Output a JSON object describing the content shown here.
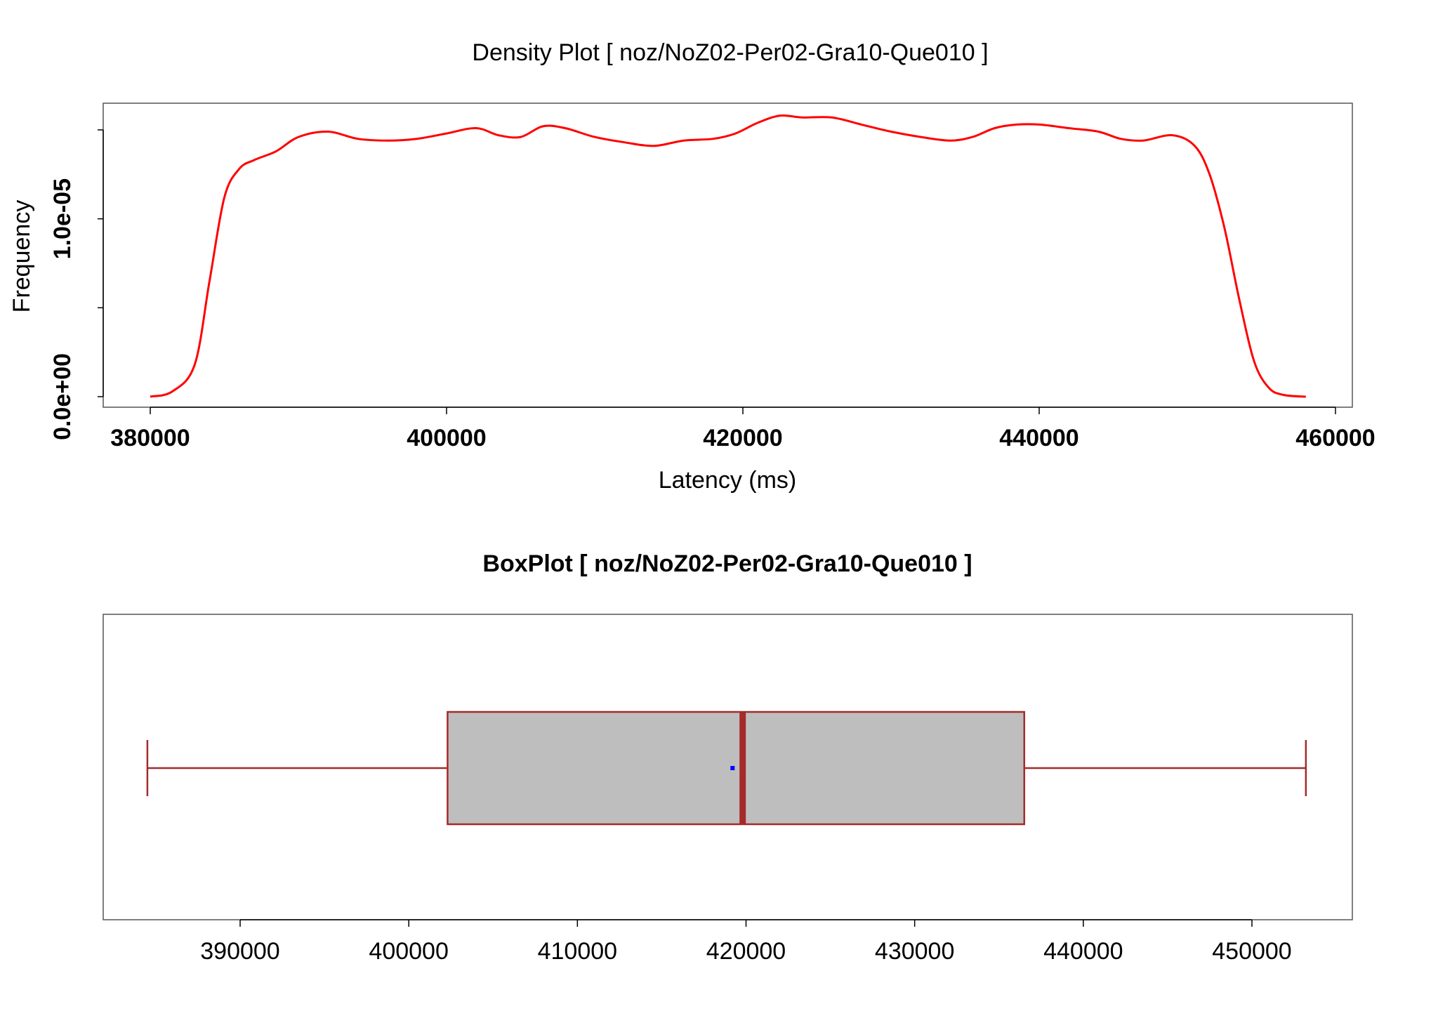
{
  "chart_data": [
    {
      "type": "line",
      "title": "Density Plot [ noz/NoZ02-Per02-Gra10-Que010 ]",
      "xlabel": "Latency (ms)",
      "ylabel": "Frequency",
      "xlim": [
        380000,
        460000
      ],
      "ylim": [
        0,
        1.5e-05
      ],
      "x_ticks": [
        380000,
        400000,
        420000,
        440000,
        460000
      ],
      "x_tick_labels": [
        "380000",
        "400000",
        "420000",
        "440000",
        "460000"
      ],
      "y_ticks": [
        0,
        5e-06,
        1e-05,
        1.5e-05
      ],
      "y_tick_labels": [
        "0.0e+00",
        "",
        "1.0e-05",
        ""
      ],
      "grid": false,
      "series": [
        {
          "color": "#ff0000",
          "x": [
            380000,
            381500,
            383000,
            384000,
            385000,
            386000,
            387000,
            388500,
            390000,
            392000,
            394000,
            396000,
            398000,
            400000,
            402000,
            403500,
            405000,
            406500,
            408000,
            410000,
            412000,
            414000,
            416000,
            418000,
            419500,
            421000,
            422500,
            424000,
            426000,
            428000,
            430000,
            432000,
            434000,
            435500,
            437000,
            438500,
            440000,
            442000,
            444000,
            445500,
            447000,
            449000,
            450500,
            451500,
            452500,
            453500,
            454500,
            455500,
            456500,
            458000
          ],
          "y": [
            0.0,
            3e-07,
            1.8e-06,
            6.5e-06,
            1.12e-05,
            1.28e-05,
            1.33e-05,
            1.38e-05,
            1.46e-05,
            1.49e-05,
            1.45e-05,
            1.44e-05,
            1.45e-05,
            1.48e-05,
            1.51e-05,
            1.47e-05,
            1.46e-05,
            1.52e-05,
            1.51e-05,
            1.46e-05,
            1.43e-05,
            1.41e-05,
            1.44e-05,
            1.45e-05,
            1.48e-05,
            1.54e-05,
            1.58e-05,
            1.57e-05,
            1.57e-05,
            1.53e-05,
            1.49e-05,
            1.46e-05,
            1.44e-05,
            1.46e-05,
            1.51e-05,
            1.53e-05,
            1.53e-05,
            1.51e-05,
            1.49e-05,
            1.45e-05,
            1.44e-05,
            1.47e-05,
            1.41e-05,
            1.25e-05,
            9.5e-06,
            5.5e-06,
            2e-06,
            5e-07,
            1e-07,
            0.0
          ]
        }
      ]
    },
    {
      "type": "box",
      "title": "BoxPlot [ noz/NoZ02-Per02-Gra10-Que010 ]",
      "xlim": [
        380000,
        454000
      ],
      "x_ticks": [
        390000,
        400000,
        410000,
        420000,
        430000,
        440000,
        450000
      ],
      "x_tick_labels": [
        "390000",
        "400000",
        "410000",
        "420000",
        "430000",
        "440000",
        "450000"
      ],
      "whisker_low": 384500,
      "q1": 402300,
      "median": 419800,
      "mean": 419200,
      "q3": 436500,
      "whisker_high": 453200,
      "box_fill": "#bebebe",
      "box_stroke": "#a52a2a",
      "mean_color": "#0000ff"
    }
  ]
}
